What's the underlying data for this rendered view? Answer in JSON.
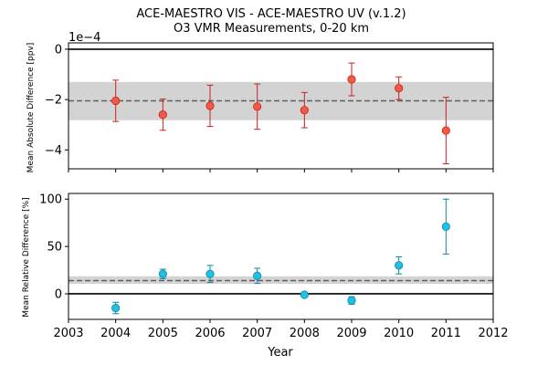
{
  "chart_data": [
    {
      "type": "scatter",
      "title": "ACE-MAESTRO VIS - ACE-MAESTRO UV (v.1.2)",
      "subtitle": "O3 VMR Measurements, 0-20 km",
      "ylabel": "Mean Absolute Difference [ppv]",
      "xlabel": "",
      "offset_label": "1e−4",
      "xlim": [
        2003,
        2012
      ],
      "ylim": [
        -4.75,
        0.25
      ],
      "yticks": [
        0,
        -2,
        -4
      ],
      "ytick_labels": [
        "0",
        "−2",
        "−4"
      ],
      "xticks": [
        2003,
        2004,
        2005,
        2006,
        2007,
        2008,
        2009,
        2010,
        2011,
        2012
      ],
      "show_xtick_labels": false,
      "x": [
        2004,
        2005,
        2006,
        2007,
        2008,
        2009,
        2010,
        2011
      ],
      "y": [
        -2.05,
        -2.6,
        -2.25,
        -2.28,
        -2.42,
        -1.2,
        -1.55,
        -3.23
      ],
      "yerr": [
        0.82,
        0.62,
        0.82,
        0.9,
        0.7,
        0.65,
        0.45,
        1.32
      ],
      "mean": -2.05,
      "band": [
        -2.82,
        -1.3
      ],
      "zero_line": 0,
      "marker_color": "#f05a47",
      "error_color": "#c9211e"
    },
    {
      "type": "scatter",
      "ylabel": "Mean Relative Difference [%]",
      "xlabel": "Year",
      "xlim": [
        2003,
        2012
      ],
      "ylim": [
        -27,
        106
      ],
      "yticks": [
        0,
        50,
        100
      ],
      "ytick_labels": [
        "0",
        "50",
        "100"
      ],
      "xticks": [
        2003,
        2004,
        2005,
        2006,
        2007,
        2008,
        2009,
        2010,
        2011,
        2012
      ],
      "xtick_labels": [
        "2003",
        "2004",
        "2005",
        "2006",
        "2007",
        "2008",
        "2009",
        "2010",
        "2011",
        "2012"
      ],
      "show_xtick_labels": true,
      "x": [
        2004,
        2005,
        2006,
        2007,
        2008,
        2009,
        2010,
        2011
      ],
      "y": [
        -15,
        21,
        21,
        19,
        -1,
        -7,
        30,
        71
      ],
      "yerr": [
        6,
        5,
        9,
        8,
        2,
        4,
        9,
        29
      ],
      "mean": 14,
      "band": [
        10.5,
        18.5
      ],
      "zero_line": 0,
      "marker_color": "#1ec0e8",
      "error_color": "#0f8a95"
    }
  ]
}
